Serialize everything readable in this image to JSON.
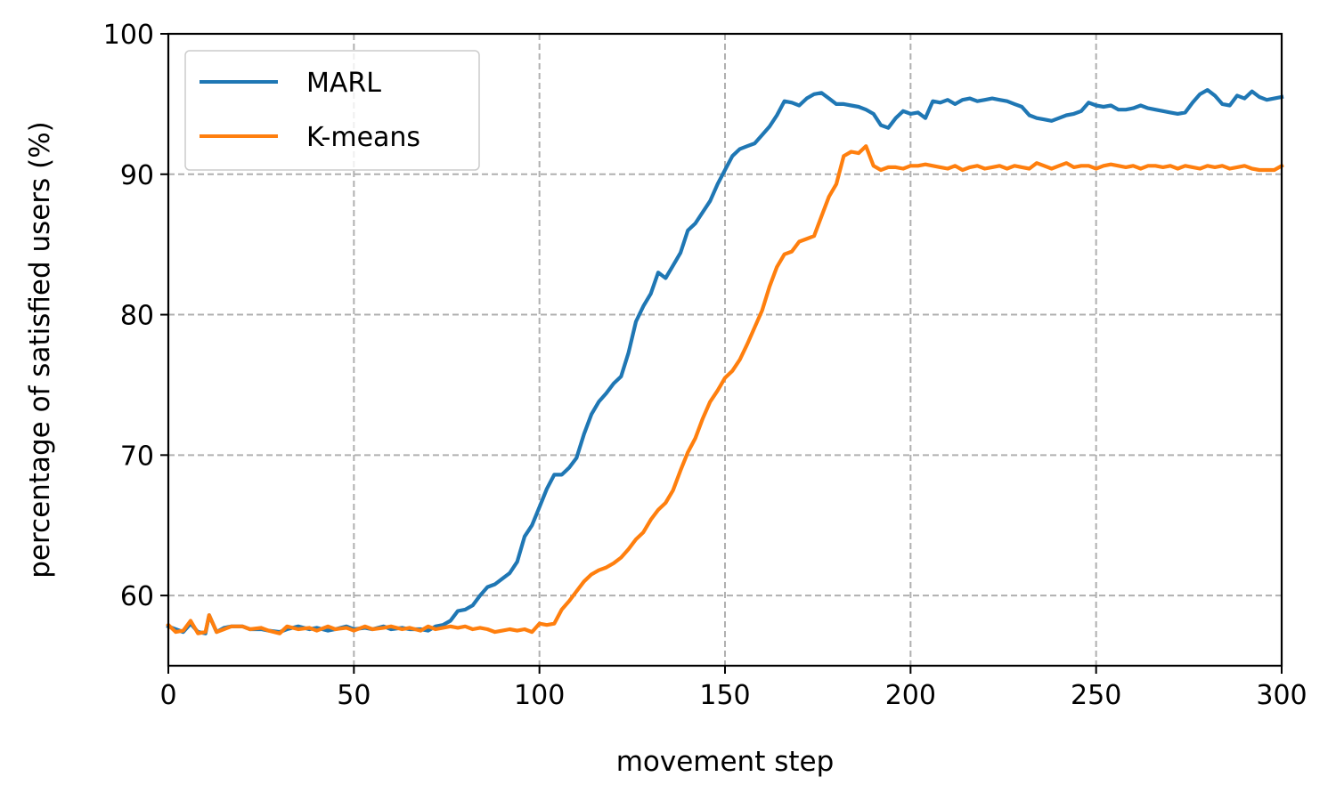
{
  "chart_data": {
    "type": "line",
    "title": "",
    "xlabel": "movement step",
    "ylabel": "percentage of satisfied users (%)",
    "xlim": [
      0,
      300
    ],
    "ylim": [
      55,
      100
    ],
    "xticks": [
      0,
      50,
      100,
      150,
      200,
      250,
      300
    ],
    "yticks": [
      60,
      70,
      80,
      90,
      100
    ],
    "grid": true,
    "legend_position": "top-left",
    "series": [
      {
        "name": "MARL",
        "color": "#1f77b4",
        "points": [
          [
            0,
            57.8
          ],
          [
            2,
            57.6
          ],
          [
            4,
            57.4
          ],
          [
            6,
            58.0
          ],
          [
            8,
            57.4
          ],
          [
            10,
            57.3
          ],
          [
            11,
            58.6
          ],
          [
            13,
            57.4
          ],
          [
            15,
            57.7
          ],
          [
            17,
            57.8
          ],
          [
            20,
            57.8
          ],
          [
            22,
            57.6
          ],
          [
            25,
            57.6
          ],
          [
            27,
            57.5
          ],
          [
            30,
            57.4
          ],
          [
            32,
            57.6
          ],
          [
            35,
            57.8
          ],
          [
            38,
            57.6
          ],
          [
            40,
            57.7
          ],
          [
            43,
            57.5
          ],
          [
            45,
            57.6
          ],
          [
            48,
            57.8
          ],
          [
            50,
            57.6
          ],
          [
            53,
            57.7
          ],
          [
            55,
            57.6
          ],
          [
            58,
            57.8
          ],
          [
            60,
            57.6
          ],
          [
            63,
            57.7
          ],
          [
            65,
            57.6
          ],
          [
            68,
            57.6
          ],
          [
            70,
            57.5
          ],
          [
            72,
            57.8
          ],
          [
            74,
            57.9
          ],
          [
            76,
            58.2
          ],
          [
            78,
            58.9
          ],
          [
            80,
            59.0
          ],
          [
            82,
            59.3
          ],
          [
            84,
            60.0
          ],
          [
            86,
            60.6
          ],
          [
            88,
            60.8
          ],
          [
            90,
            61.2
          ],
          [
            92,
            61.6
          ],
          [
            94,
            62.4
          ],
          [
            96,
            64.2
          ],
          [
            98,
            65.0
          ],
          [
            100,
            66.3
          ],
          [
            102,
            67.6
          ],
          [
            104,
            68.6
          ],
          [
            106,
            68.6
          ],
          [
            108,
            69.1
          ],
          [
            110,
            69.8
          ],
          [
            112,
            71.5
          ],
          [
            114,
            72.9
          ],
          [
            116,
            73.8
          ],
          [
            118,
            74.4
          ],
          [
            120,
            75.1
          ],
          [
            122,
            75.6
          ],
          [
            124,
            77.3
          ],
          [
            126,
            79.5
          ],
          [
            128,
            80.6
          ],
          [
            130,
            81.5
          ],
          [
            132,
            83.0
          ],
          [
            134,
            82.6
          ],
          [
            136,
            83.5
          ],
          [
            138,
            84.4
          ],
          [
            140,
            86.0
          ],
          [
            142,
            86.5
          ],
          [
            144,
            87.3
          ],
          [
            146,
            88.1
          ],
          [
            148,
            89.3
          ],
          [
            150,
            90.3
          ],
          [
            152,
            91.3
          ],
          [
            154,
            91.8
          ],
          [
            156,
            92.0
          ],
          [
            158,
            92.2
          ],
          [
            160,
            92.8
          ],
          [
            162,
            93.4
          ],
          [
            164,
            94.2
          ],
          [
            166,
            95.2
          ],
          [
            168,
            95.1
          ],
          [
            170,
            94.9
          ],
          [
            172,
            95.4
          ],
          [
            174,
            95.7
          ],
          [
            176,
            95.8
          ],
          [
            178,
            95.4
          ],
          [
            180,
            95.0
          ],
          [
            182,
            95.0
          ],
          [
            184,
            94.9
          ],
          [
            186,
            94.8
          ],
          [
            188,
            94.6
          ],
          [
            190,
            94.3
          ],
          [
            192,
            93.5
          ],
          [
            194,
            93.3
          ],
          [
            196,
            94.0
          ],
          [
            198,
            94.5
          ],
          [
            200,
            94.3
          ],
          [
            202,
            94.4
          ],
          [
            204,
            94.0
          ],
          [
            206,
            95.2
          ],
          [
            208,
            95.1
          ],
          [
            210,
            95.3
          ],
          [
            212,
            95.0
          ],
          [
            214,
            95.3
          ],
          [
            216,
            95.4
          ],
          [
            218,
            95.2
          ],
          [
            220,
            95.3
          ],
          [
            222,
            95.4
          ],
          [
            224,
            95.3
          ],
          [
            226,
            95.2
          ],
          [
            228,
            95.0
          ],
          [
            230,
            94.8
          ],
          [
            232,
            94.2
          ],
          [
            234,
            94.0
          ],
          [
            236,
            93.9
          ],
          [
            238,
            93.8
          ],
          [
            240,
            94.0
          ],
          [
            242,
            94.2
          ],
          [
            244,
            94.3
          ],
          [
            246,
            94.5
          ],
          [
            248,
            95.1
          ],
          [
            250,
            94.9
          ],
          [
            252,
            94.8
          ],
          [
            254,
            94.9
          ],
          [
            256,
            94.6
          ],
          [
            258,
            94.6
          ],
          [
            260,
            94.7
          ],
          [
            262,
            94.9
          ],
          [
            264,
            94.7
          ],
          [
            266,
            94.6
          ],
          [
            268,
            94.5
          ],
          [
            270,
            94.4
          ],
          [
            272,
            94.3
          ],
          [
            274,
            94.4
          ],
          [
            276,
            95.1
          ],
          [
            278,
            95.7
          ],
          [
            280,
            96.0
          ],
          [
            282,
            95.6
          ],
          [
            284,
            95.0
          ],
          [
            286,
            94.9
          ],
          [
            288,
            95.6
          ],
          [
            290,
            95.4
          ],
          [
            292,
            95.9
          ],
          [
            294,
            95.5
          ],
          [
            296,
            95.3
          ],
          [
            298,
            95.4
          ],
          [
            300,
            95.5
          ]
        ]
      },
      {
        "name": "K-means",
        "color": "#ff7f0e",
        "points": [
          [
            0,
            57.9
          ],
          [
            2,
            57.4
          ],
          [
            4,
            57.5
          ],
          [
            6,
            58.2
          ],
          [
            8,
            57.3
          ],
          [
            10,
            57.4
          ],
          [
            11,
            58.6
          ],
          [
            13,
            57.4
          ],
          [
            15,
            57.6
          ],
          [
            17,
            57.8
          ],
          [
            20,
            57.8
          ],
          [
            22,
            57.6
          ],
          [
            25,
            57.7
          ],
          [
            27,
            57.5
          ],
          [
            30,
            57.3
          ],
          [
            32,
            57.8
          ],
          [
            35,
            57.6
          ],
          [
            38,
            57.7
          ],
          [
            40,
            57.5
          ],
          [
            43,
            57.8
          ],
          [
            45,
            57.6
          ],
          [
            48,
            57.7
          ],
          [
            50,
            57.5
          ],
          [
            53,
            57.8
          ],
          [
            55,
            57.6
          ],
          [
            58,
            57.7
          ],
          [
            60,
            57.8
          ],
          [
            63,
            57.6
          ],
          [
            65,
            57.7
          ],
          [
            68,
            57.5
          ],
          [
            70,
            57.8
          ],
          [
            72,
            57.6
          ],
          [
            74,
            57.7
          ],
          [
            76,
            57.8
          ],
          [
            78,
            57.7
          ],
          [
            80,
            57.8
          ],
          [
            82,
            57.6
          ],
          [
            84,
            57.7
          ],
          [
            86,
            57.6
          ],
          [
            88,
            57.4
          ],
          [
            90,
            57.5
          ],
          [
            92,
            57.6
          ],
          [
            94,
            57.5
          ],
          [
            96,
            57.6
          ],
          [
            98,
            57.4
          ],
          [
            100,
            58.0
          ],
          [
            102,
            57.9
          ],
          [
            104,
            58.0
          ],
          [
            106,
            59.0
          ],
          [
            108,
            59.6
          ],
          [
            110,
            60.3
          ],
          [
            112,
            61.0
          ],
          [
            114,
            61.5
          ],
          [
            116,
            61.8
          ],
          [
            118,
            62.0
          ],
          [
            120,
            62.3
          ],
          [
            122,
            62.7
          ],
          [
            124,
            63.3
          ],
          [
            126,
            64.0
          ],
          [
            128,
            64.5
          ],
          [
            130,
            65.4
          ],
          [
            132,
            66.1
          ],
          [
            134,
            66.6
          ],
          [
            136,
            67.5
          ],
          [
            138,
            68.9
          ],
          [
            140,
            70.2
          ],
          [
            142,
            71.2
          ],
          [
            144,
            72.6
          ],
          [
            146,
            73.8
          ],
          [
            148,
            74.6
          ],
          [
            150,
            75.5
          ],
          [
            152,
            76.0
          ],
          [
            154,
            76.8
          ],
          [
            156,
            77.9
          ],
          [
            158,
            79.1
          ],
          [
            160,
            80.3
          ],
          [
            162,
            82.0
          ],
          [
            164,
            83.4
          ],
          [
            166,
            84.3
          ],
          [
            168,
            84.5
          ],
          [
            170,
            85.2
          ],
          [
            172,
            85.4
          ],
          [
            174,
            85.6
          ],
          [
            176,
            87.0
          ],
          [
            178,
            88.4
          ],
          [
            180,
            89.3
          ],
          [
            182,
            91.3
          ],
          [
            184,
            91.6
          ],
          [
            186,
            91.5
          ],
          [
            188,
            92.0
          ],
          [
            190,
            90.6
          ],
          [
            192,
            90.3
          ],
          [
            194,
            90.5
          ],
          [
            196,
            90.5
          ],
          [
            198,
            90.4
          ],
          [
            200,
            90.6
          ],
          [
            202,
            90.6
          ],
          [
            204,
            90.7
          ],
          [
            206,
            90.6
          ],
          [
            208,
            90.5
          ],
          [
            210,
            90.4
          ],
          [
            212,
            90.6
          ],
          [
            214,
            90.3
          ],
          [
            216,
            90.5
          ],
          [
            218,
            90.6
          ],
          [
            220,
            90.4
          ],
          [
            222,
            90.5
          ],
          [
            224,
            90.6
          ],
          [
            226,
            90.4
          ],
          [
            228,
            90.6
          ],
          [
            230,
            90.5
          ],
          [
            232,
            90.4
          ],
          [
            234,
            90.8
          ],
          [
            236,
            90.6
          ],
          [
            238,
            90.4
          ],
          [
            240,
            90.6
          ],
          [
            242,
            90.8
          ],
          [
            244,
            90.5
          ],
          [
            246,
            90.6
          ],
          [
            248,
            90.6
          ],
          [
            250,
            90.4
          ],
          [
            252,
            90.6
          ],
          [
            254,
            90.7
          ],
          [
            256,
            90.6
          ],
          [
            258,
            90.5
          ],
          [
            260,
            90.6
          ],
          [
            262,
            90.4
          ],
          [
            264,
            90.6
          ],
          [
            266,
            90.6
          ],
          [
            268,
            90.5
          ],
          [
            270,
            90.6
          ],
          [
            272,
            90.4
          ],
          [
            274,
            90.6
          ],
          [
            276,
            90.5
          ],
          [
            278,
            90.4
          ],
          [
            280,
            90.6
          ],
          [
            282,
            90.5
          ],
          [
            284,
            90.6
          ],
          [
            286,
            90.4
          ],
          [
            288,
            90.5
          ],
          [
            290,
            90.6
          ],
          [
            292,
            90.4
          ],
          [
            294,
            90.3
          ],
          [
            296,
            90.3
          ],
          [
            298,
            90.3
          ],
          [
            300,
            90.6
          ]
        ]
      }
    ]
  }
}
